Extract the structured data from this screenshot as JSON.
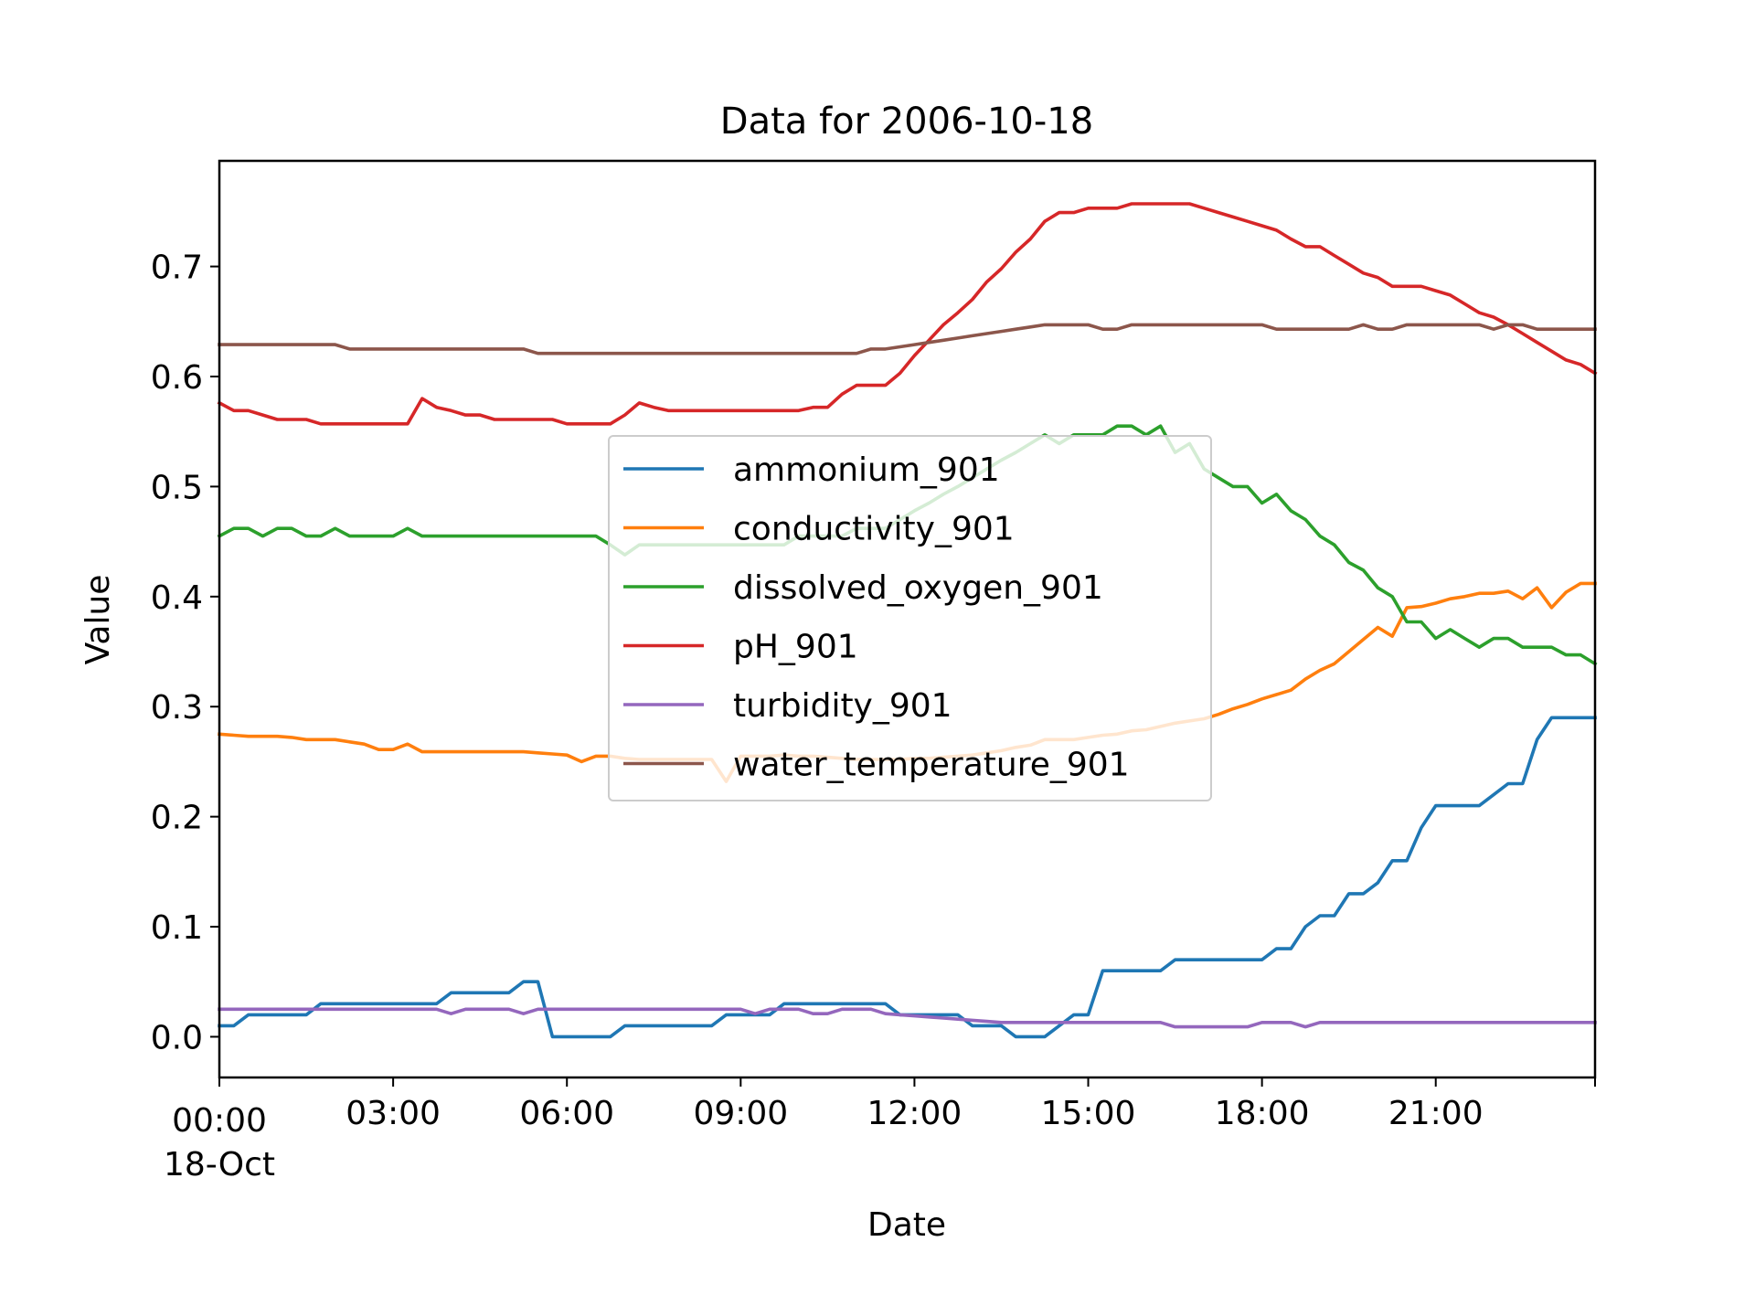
{
  "chart_data": {
    "type": "line",
    "title": "Data for 2006-10-18",
    "xlabel": "Date",
    "ylabel": "Value",
    "x_ticks": [
      {
        "t": "2006-10-18T00:00",
        "label": "00:00",
        "sublabel": "18-Oct"
      },
      {
        "t": "2006-10-18T03:00",
        "label": "03:00"
      },
      {
        "t": "2006-10-18T06:00",
        "label": "06:00"
      },
      {
        "t": "2006-10-18T09:00",
        "label": "09:00"
      },
      {
        "t": "2006-10-18T12:00",
        "label": "12:00"
      },
      {
        "t": "2006-10-18T15:00",
        "label": "15:00"
      },
      {
        "t": "2006-10-18T18:00",
        "label": "18:00"
      },
      {
        "t": "2006-10-18T21:00",
        "label": "21:00"
      }
    ],
    "y_ticks": [
      {
        "v": 0.0,
        "label": "0.0"
      },
      {
        "v": 0.1,
        "label": "0.1"
      },
      {
        "v": 0.2,
        "label": "0.2"
      },
      {
        "v": 0.3,
        "label": "0.3"
      },
      {
        "v": 0.4,
        "label": "0.4"
      },
      {
        "v": 0.5,
        "label": "0.5"
      },
      {
        "v": 0.6,
        "label": "0.6"
      },
      {
        "v": 0.7,
        "label": "0.7"
      }
    ],
    "xlim": [
      "2006-10-18T00:00",
      "2006-10-18T23:45"
    ],
    "ylim": [
      -0.037,
      0.796
    ],
    "grid": false,
    "legend_position": "center",
    "x": [
      "2006-10-18T00:00",
      "2006-10-18T00:15",
      "2006-10-18T00:30",
      "2006-10-18T00:45",
      "2006-10-18T01:00",
      "2006-10-18T01:15",
      "2006-10-18T01:30",
      "2006-10-18T01:45",
      "2006-10-18T02:00",
      "2006-10-18T02:15",
      "2006-10-18T02:30",
      "2006-10-18T02:45",
      "2006-10-18T03:00",
      "2006-10-18T03:15",
      "2006-10-18T03:30",
      "2006-10-18T03:45",
      "2006-10-18T04:00",
      "2006-10-18T04:15",
      "2006-10-18T04:30",
      "2006-10-18T04:45",
      "2006-10-18T05:00",
      "2006-10-18T05:15",
      "2006-10-18T05:30",
      "2006-10-18T05:45",
      "2006-10-18T06:00",
      "2006-10-18T06:15",
      "2006-10-18T06:30",
      "2006-10-18T06:45",
      "2006-10-18T07:00",
      "2006-10-18T07:15",
      "2006-10-18T07:30",
      "2006-10-18T07:45",
      "2006-10-18T08:00",
      "2006-10-18T08:15",
      "2006-10-18T08:30",
      "2006-10-18T08:45",
      "2006-10-18T09:00",
      "2006-10-18T09:15",
      "2006-10-18T09:30",
      "2006-10-18T09:45",
      "2006-10-18T10:00",
      "2006-10-18T10:15",
      "2006-10-18T10:30",
      "2006-10-18T10:45",
      "2006-10-18T11:00",
      "2006-10-18T11:15",
      "2006-10-18T11:30",
      "2006-10-18T11:45",
      "2006-10-18T12:00",
      "2006-10-18T12:15",
      "2006-10-18T12:30",
      "2006-10-18T12:45",
      "2006-10-18T13:00",
      "2006-10-18T13:15",
      "2006-10-18T13:30",
      "2006-10-18T13:45",
      "2006-10-18T14:00",
      "2006-10-18T14:15",
      "2006-10-18T14:30",
      "2006-10-18T14:45",
      "2006-10-18T15:00",
      "2006-10-18T15:15",
      "2006-10-18T15:30",
      "2006-10-18T15:45",
      "2006-10-18T16:00",
      "2006-10-18T16:15",
      "2006-10-18T16:30",
      "2006-10-18T16:45",
      "2006-10-18T17:00",
      "2006-10-18T17:15",
      "2006-10-18T17:30",
      "2006-10-18T17:45",
      "2006-10-18T18:00",
      "2006-10-18T18:15",
      "2006-10-18T18:30",
      "2006-10-18T18:45",
      "2006-10-18T19:00",
      "2006-10-18T19:15",
      "2006-10-18T19:30",
      "2006-10-18T19:45",
      "2006-10-18T20:00",
      "2006-10-18T20:15",
      "2006-10-18T20:30",
      "2006-10-18T20:45",
      "2006-10-18T21:00",
      "2006-10-18T21:15",
      "2006-10-18T21:30",
      "2006-10-18T21:45",
      "2006-10-18T22:00",
      "2006-10-18T22:15",
      "2006-10-18T22:30",
      "2006-10-18T22:45",
      "2006-10-18T23:00",
      "2006-10-18T23:15",
      "2006-10-18T23:30",
      "2006-10-18T23:45"
    ],
    "series": [
      {
        "name": "ammonium_901",
        "color": "#1f77b4",
        "values": [
          0.01,
          0.01,
          0.02,
          0.02,
          0.02,
          0.02,
          0.02,
          0.03,
          0.03,
          0.03,
          0.03,
          0.03,
          0.03,
          0.03,
          0.03,
          0.03,
          0.04,
          0.04,
          0.04,
          0.04,
          0.04,
          0.05,
          0.05,
          0.0,
          0.0,
          0.0,
          0.0,
          0.0,
          0.01,
          0.01,
          0.01,
          0.01,
          0.01,
          0.01,
          0.01,
          0.02,
          0.02,
          0.02,
          0.02,
          0.03,
          0.03,
          0.03,
          0.03,
          0.03,
          0.03,
          0.03,
          0.03,
          0.02,
          0.02,
          0.02,
          0.02,
          0.02,
          0.01,
          0.01,
          0.01,
          0.0,
          0.0,
          0.0,
          0.01,
          0.02,
          0.02,
          0.06,
          0.06,
          0.06,
          0.06,
          0.06,
          0.07,
          0.07,
          0.07,
          0.07,
          0.07,
          0.07,
          0.07,
          0.08,
          0.08,
          0.1,
          0.11,
          0.11,
          0.13,
          0.13,
          0.14,
          0.16,
          0.16,
          0.19,
          0.21,
          0.21,
          0.21,
          0.21,
          0.22,
          0.23,
          0.23,
          0.27,
          0.29,
          0.29,
          0.29,
          0.29
        ]
      },
      {
        "name": "conductivity_901",
        "color": "#ff7f0e",
        "values": [
          0.275,
          0.274,
          0.273,
          0.273,
          0.273,
          0.272,
          0.27,
          0.27,
          0.27,
          0.268,
          0.266,
          0.261,
          0.261,
          0.266,
          0.259,
          0.259,
          0.259,
          0.259,
          0.259,
          0.259,
          0.259,
          0.259,
          0.258,
          0.257,
          0.256,
          0.25,
          0.255,
          0.255,
          0.253,
          0.252,
          0.252,
          0.252,
          0.252,
          0.252,
          0.252,
          0.232,
          0.255,
          0.255,
          0.255,
          0.256,
          0.255,
          0.255,
          0.254,
          0.253,
          0.252,
          0.252,
          0.252,
          0.252,
          0.253,
          0.253,
          0.254,
          0.255,
          0.256,
          0.258,
          0.26,
          0.263,
          0.265,
          0.27,
          0.27,
          0.27,
          0.272,
          0.274,
          0.275,
          0.278,
          0.279,
          0.282,
          0.285,
          0.287,
          0.289,
          0.293,
          0.298,
          0.302,
          0.307,
          0.311,
          0.315,
          0.325,
          0.333,
          0.339,
          0.35,
          0.361,
          0.372,
          0.364,
          0.39,
          0.391,
          0.394,
          0.398,
          0.4,
          0.403,
          0.403,
          0.405,
          0.398,
          0.408,
          0.39,
          0.404,
          0.412,
          0.412
        ]
      },
      {
        "name": "dissolved_oxygen_901",
        "color": "#2ca02c",
        "values": [
          0.455,
          0.462,
          0.462,
          0.455,
          0.462,
          0.462,
          0.455,
          0.455,
          0.462,
          0.455,
          0.455,
          0.455,
          0.455,
          0.462,
          0.455,
          0.455,
          0.455,
          0.455,
          0.455,
          0.455,
          0.455,
          0.455,
          0.455,
          0.455,
          0.455,
          0.455,
          0.455,
          0.447,
          0.438,
          0.447,
          0.447,
          0.447,
          0.447,
          0.447,
          0.447,
          0.447,
          0.447,
          0.447,
          0.447,
          0.447,
          0.455,
          0.455,
          0.455,
          0.455,
          0.462,
          0.462,
          0.462,
          0.47,
          0.478,
          0.485,
          0.493,
          0.5,
          0.508,
          0.516,
          0.524,
          0.531,
          0.539,
          0.547,
          0.539,
          0.547,
          0.547,
          0.547,
          0.555,
          0.555,
          0.547,
          0.555,
          0.531,
          0.539,
          0.516,
          0.508,
          0.5,
          0.5,
          0.485,
          0.493,
          0.478,
          0.47,
          0.455,
          0.447,
          0.431,
          0.424,
          0.408,
          0.4,
          0.377,
          0.377,
          0.362,
          0.37,
          0.362,
          0.354,
          0.362,
          0.362,
          0.354,
          0.354,
          0.354,
          0.347,
          0.347,
          0.339
        ]
      },
      {
        "name": "pH_901",
        "color": "#d62728",
        "values": [
          0.576,
          0.569,
          0.569,
          0.565,
          0.561,
          0.561,
          0.561,
          0.557,
          0.557,
          0.557,
          0.557,
          0.557,
          0.557,
          0.557,
          0.58,
          0.572,
          0.569,
          0.565,
          0.565,
          0.561,
          0.561,
          0.561,
          0.561,
          0.561,
          0.557,
          0.557,
          0.557,
          0.557,
          0.565,
          0.576,
          0.572,
          0.569,
          0.569,
          0.569,
          0.569,
          0.569,
          0.569,
          0.569,
          0.569,
          0.569,
          0.569,
          0.572,
          0.572,
          0.584,
          0.592,
          0.592,
          0.592,
          0.603,
          0.619,
          0.633,
          0.647,
          0.658,
          0.67,
          0.686,
          0.698,
          0.713,
          0.725,
          0.741,
          0.749,
          0.749,
          0.753,
          0.753,
          0.753,
          0.757,
          0.757,
          0.757,
          0.757,
          0.757,
          0.753,
          0.749,
          0.745,
          0.741,
          0.737,
          0.733,
          0.725,
          0.718,
          0.718,
          0.71,
          0.702,
          0.694,
          0.69,
          0.682,
          0.682,
          0.682,
          0.678,
          0.674,
          0.666,
          0.658,
          0.654,
          0.647,
          0.639,
          0.631,
          0.623,
          0.615,
          0.611,
          0.603
        ]
      },
      {
        "name": "turbidity_901",
        "color": "#9467bd",
        "values": [
          0.025,
          0.025,
          0.025,
          0.025,
          0.025,
          0.025,
          0.025,
          0.025,
          0.025,
          0.025,
          0.025,
          0.025,
          0.025,
          0.025,
          0.025,
          0.025,
          0.021,
          0.025,
          0.025,
          0.025,
          0.025,
          0.021,
          0.025,
          0.025,
          0.025,
          0.025,
          0.025,
          0.025,
          0.025,
          0.025,
          0.025,
          0.025,
          0.025,
          0.025,
          0.025,
          0.025,
          0.025,
          0.021,
          0.025,
          0.025,
          0.025,
          0.021,
          0.021,
          0.025,
          0.025,
          0.025,
          0.021,
          0.02,
          0.019,
          0.018,
          0.017,
          0.016,
          0.015,
          0.014,
          0.013,
          0.013,
          0.013,
          0.013,
          0.013,
          0.013,
          0.013,
          0.013,
          0.013,
          0.013,
          0.013,
          0.013,
          0.009,
          0.009,
          0.009,
          0.009,
          0.009,
          0.009,
          0.013,
          0.013,
          0.013,
          0.009,
          0.013,
          0.013,
          0.013,
          0.013,
          0.013,
          0.013,
          0.013,
          0.013,
          0.013,
          0.013,
          0.013,
          0.013,
          0.013,
          0.013,
          0.013,
          0.013,
          0.013,
          0.013,
          0.013,
          0.013
        ]
      },
      {
        "name": "water_temperature_901",
        "color": "#8c564b",
        "values": [
          0.629,
          0.629,
          0.629,
          0.629,
          0.629,
          0.629,
          0.629,
          0.629,
          0.629,
          0.625,
          0.625,
          0.625,
          0.625,
          0.625,
          0.625,
          0.625,
          0.625,
          0.625,
          0.625,
          0.625,
          0.625,
          0.625,
          0.621,
          0.621,
          0.621,
          0.621,
          0.621,
          0.621,
          0.621,
          0.621,
          0.621,
          0.621,
          0.621,
          0.621,
          0.621,
          0.621,
          0.621,
          0.621,
          0.621,
          0.621,
          0.621,
          0.621,
          0.621,
          0.621,
          0.621,
          0.625,
          0.625,
          0.627,
          0.629,
          0.631,
          0.633,
          0.635,
          0.637,
          0.639,
          0.641,
          0.643,
          0.645,
          0.647,
          0.647,
          0.647,
          0.647,
          0.643,
          0.643,
          0.647,
          0.647,
          0.647,
          0.647,
          0.647,
          0.647,
          0.647,
          0.647,
          0.647,
          0.647,
          0.643,
          0.643,
          0.643,
          0.643,
          0.643,
          0.643,
          0.647,
          0.643,
          0.643,
          0.647,
          0.647,
          0.647,
          0.647,
          0.647,
          0.647,
          0.643,
          0.647,
          0.647,
          0.643,
          0.643,
          0.643,
          0.643,
          0.643
        ]
      }
    ]
  }
}
